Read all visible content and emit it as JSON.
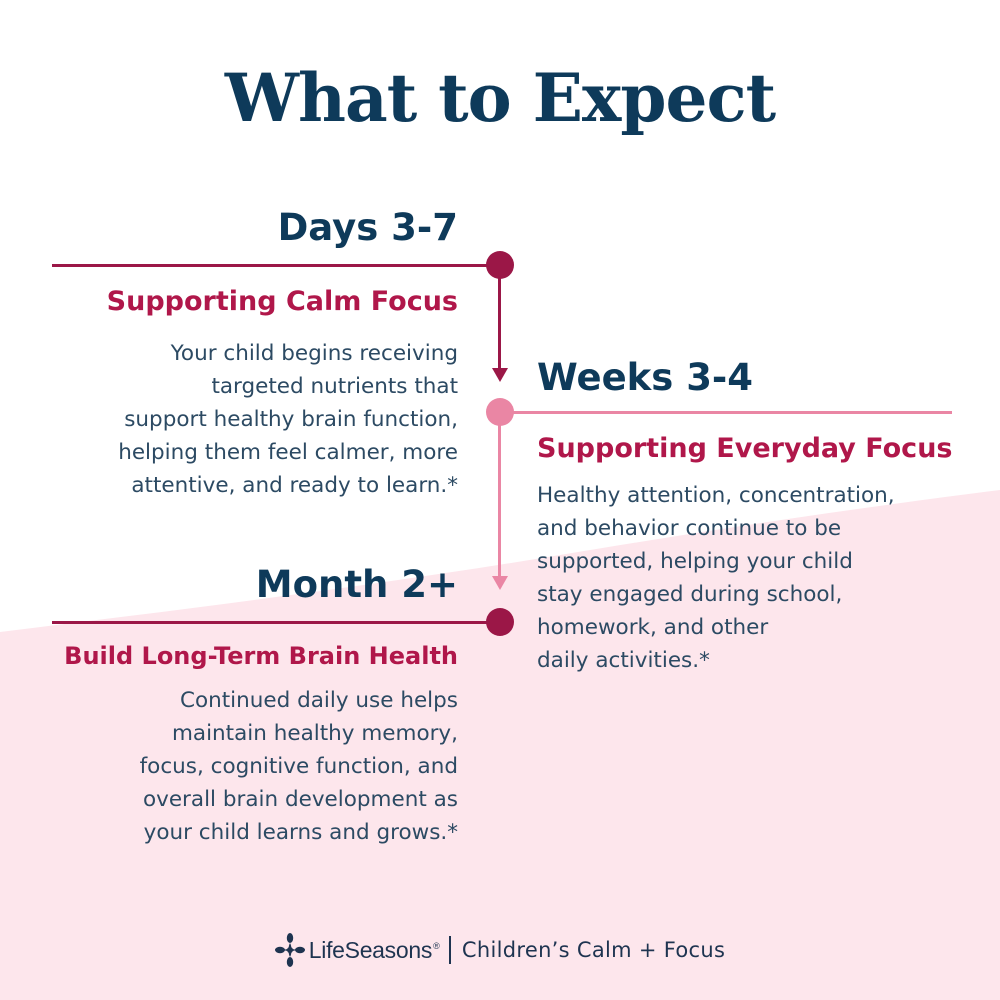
{
  "title": "What to Expect",
  "colors": {
    "navy": "#0e3a5a",
    "crimson": "#b0174a",
    "maroon": "#9b1747",
    "pink": "#ea86a4",
    "background_pink": "#fde6ec",
    "body_text": "#2c4a63"
  },
  "timeline": [
    {
      "period": "Days 3-7",
      "heading": "Supporting Calm Focus",
      "body": "Your child begins receiving\ntargeted nutrients that\nsupport healthy brain function,\nhelping them feel calmer, more\nattentive, and ready to learn.*",
      "color": "#9b1747"
    },
    {
      "period": "Weeks 3-4",
      "heading": "Supporting Everyday Focus",
      "body": "Healthy attention, concentration,\nand behavior continue to be\nsupported, helping your child\nstay engaged during school,\nhomework, and other\ndaily activities.*",
      "color": "#ea86a4"
    },
    {
      "period": "Month 2+",
      "heading": "Build Long-Term Brain Health",
      "body": "Continued daily use helps\nmaintain healthy memory,\nfocus, cognitive function, and\noverall brain development as\nyour child learns and grows.*",
      "color": "#9b1747"
    }
  ],
  "footer": {
    "brand": "LifeSeasons",
    "registered_mark": "®",
    "product": "Children’s Calm + Focus",
    "logo_icon": "lifeseasons-logo-icon"
  }
}
